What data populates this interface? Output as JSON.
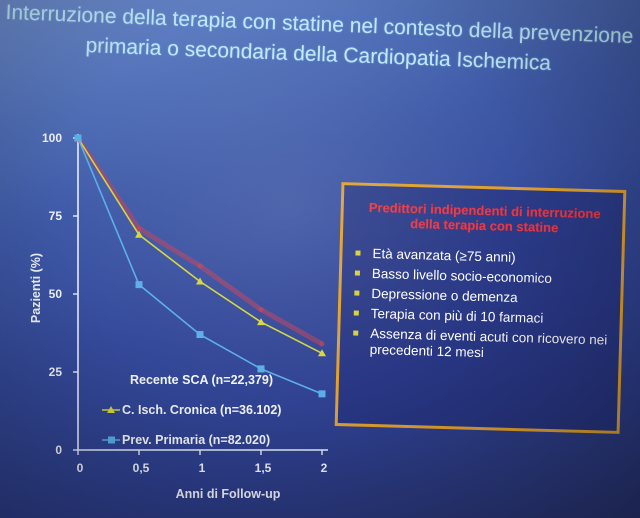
{
  "slide": {
    "title_lines": [
      "Interruzione della terapia con statine nel contesto della prevenzione",
      "primaria o secondaria della Cardiopatia Ischemica"
    ]
  },
  "predictors_box": {
    "title": "Predittori indipendenti di interruzione della terapia con statine",
    "items": [
      "Età avanzata (≥75 anni)",
      "Basso livello socio-economico",
      "Depressione o demenza",
      "Terapia con più di 10 farmaci",
      "Assenza di eventi acuti con ricovero nei precedenti 12 mesi"
    ],
    "border_color": "#e0a030",
    "title_color": "#e23a4a",
    "bullet_color": "#d8d038"
  },
  "chart_data": {
    "type": "line",
    "xlabel": "Anni di Follow-up",
    "ylabel": "Pazienti (%)",
    "x": [
      0,
      0.5,
      1,
      1.5,
      2
    ],
    "x_tick_labels": [
      "0",
      "0,5",
      "1",
      "1,5",
      "2"
    ],
    "ylim": [
      0,
      100
    ],
    "y_ticks": [
      0,
      25,
      50,
      75,
      100
    ],
    "xlim": [
      0,
      2
    ],
    "grid": false,
    "legend_position": "bottom-left",
    "series": [
      {
        "name": "Recente SCA (n=22,379)",
        "values": [
          100,
          71,
          59,
          45,
          34
        ],
        "color": "#c0405a",
        "marker": "none"
      },
      {
        "name": "C. Isch. Cronica (n=36.102)",
        "values": [
          100,
          69,
          54,
          41,
          31
        ],
        "color": "#d6d63a",
        "marker": "triangle"
      },
      {
        "name": "Prev. Primaria (n=82.020)",
        "values": [
          100,
          53,
          37,
          26,
          18
        ],
        "color": "#5aaee8",
        "marker": "square"
      }
    ]
  }
}
